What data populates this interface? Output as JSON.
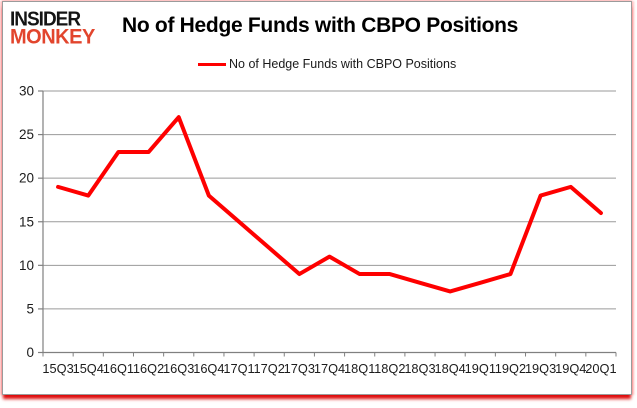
{
  "logo": {
    "line1": "INSIDER",
    "line2": "MONKEY"
  },
  "header": {
    "title": "No of Hedge Funds with CBPO Positions"
  },
  "legend": {
    "label": "No of Hedge Funds with CBPO Positions"
  },
  "chart_data": {
    "type": "line",
    "title": "No of Hedge Funds with CBPO Positions",
    "categories": [
      "15Q3",
      "15Q4",
      "16Q1",
      "16Q2",
      "16Q3",
      "16Q4",
      "17Q1",
      "17Q2",
      "17Q3",
      "17Q4",
      "18Q1",
      "18Q2",
      "18Q3",
      "18Q4",
      "19Q1",
      "19Q2",
      "19Q3",
      "19Q4",
      "20Q1"
    ],
    "series": [
      {
        "name": "No of Hedge Funds with CBPO Positions",
        "values": [
          19,
          18,
          23,
          23,
          27,
          18,
          15,
          12,
          9,
          11,
          9,
          9,
          8,
          7,
          8,
          9,
          18,
          19,
          16
        ]
      }
    ],
    "xlabel": "",
    "ylabel": "",
    "ylim": [
      0,
      30
    ],
    "yticks": [
      0,
      5,
      10,
      15,
      20,
      25,
      30
    ],
    "grid": true,
    "legend_position": "top",
    "colors": {
      "line": "#fe0000",
      "grid": "#9a9a9a",
      "axis": "#808080",
      "text": "#1c1c1c",
      "logo_red": "#e2452d",
      "frame_glow": "#dc0000"
    }
  }
}
